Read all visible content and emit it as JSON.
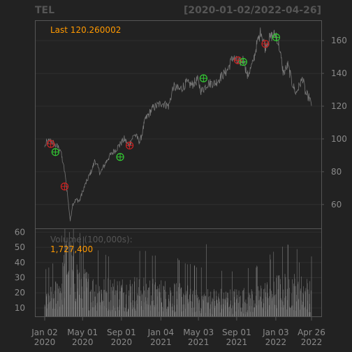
{
  "header": {
    "symbol": "TEL",
    "range": "[2020-01-02/2022-04-26]"
  },
  "colors": {
    "background": "#222222",
    "panel_border": "#555555",
    "grid": "#2f2f2f",
    "axis_text": "#8a8a8a",
    "price_line": "#777777",
    "volume_bar": "#7a7a7a",
    "annotation": "#ff9900",
    "buy_marker": "#33cc33",
    "sell_marker": "#cc2222"
  },
  "chart_data": [
    {
      "type": "line",
      "name": "price",
      "annotation": "Last 120.260002",
      "ylim": [
        45,
        172
      ],
      "yticks": [
        60,
        80,
        100,
        120,
        140,
        160
      ],
      "ytick_side": "right",
      "x_range": [
        "2020-01-02",
        "2022-04-26"
      ],
      "anchors": [
        [
          "2020-01-02",
          95
        ],
        [
          "2020-01-08",
          98
        ],
        [
          "2020-01-22",
          99
        ],
        [
          "2020-02-05",
          96
        ],
        [
          "2020-02-20",
          94
        ],
        [
          "2020-02-26",
          88
        ],
        [
          "2020-03-05",
          80
        ],
        [
          "2020-03-13",
          68
        ],
        [
          "2020-03-23",
          50
        ],
        [
          "2020-03-30",
          60
        ],
        [
          "2020-04-10",
          63
        ],
        [
          "2020-04-21",
          62
        ],
        [
          "2020-05-05",
          70
        ],
        [
          "2020-06-01",
          82
        ],
        [
          "2020-06-09",
          87
        ],
        [
          "2020-06-26",
          79
        ],
        [
          "2020-07-20",
          88
        ],
        [
          "2020-08-06",
          92
        ],
        [
          "2020-08-25",
          96
        ],
        [
          "2020-09-10",
          100
        ],
        [
          "2020-09-24",
          96
        ],
        [
          "2020-10-12",
          103
        ],
        [
          "2020-10-30",
          98
        ],
        [
          "2020-11-16",
          112
        ],
        [
          "2020-12-10",
          119
        ],
        [
          "2021-01-07",
          122
        ],
        [
          "2021-01-29",
          120
        ],
        [
          "2021-02-12",
          132
        ],
        [
          "2021-03-04",
          130
        ],
        [
          "2021-03-25",
          134
        ],
        [
          "2021-04-12",
          133
        ],
        [
          "2021-04-30",
          136
        ],
        [
          "2021-05-12",
          129
        ],
        [
          "2021-06-02",
          134
        ],
        [
          "2021-06-25",
          134
        ],
        [
          "2021-07-14",
          138
        ],
        [
          "2021-08-03",
          142
        ],
        [
          "2021-08-20",
          150
        ],
        [
          "2021-09-07",
          146
        ],
        [
          "2021-09-24",
          149
        ],
        [
          "2021-10-04",
          138
        ],
        [
          "2021-10-22",
          146
        ],
        [
          "2021-11-03",
          157
        ],
        [
          "2021-11-17",
          166
        ],
        [
          "2021-11-30",
          156
        ],
        [
          "2021-12-08",
          160
        ],
        [
          "2021-12-22",
          163
        ],
        [
          "2022-01-04",
          164
        ],
        [
          "2022-01-14",
          156
        ],
        [
          "2022-01-27",
          140
        ],
        [
          "2022-02-10",
          145
        ],
        [
          "2022-02-24",
          134
        ],
        [
          "2022-03-08",
          128
        ],
        [
          "2022-03-29",
          137
        ],
        [
          "2022-04-07",
          128
        ],
        [
          "2022-04-19",
          125
        ],
        [
          "2022-04-26",
          120.26
        ]
      ],
      "signals": [
        {
          "date": "2020-01-21",
          "value": 97,
          "kind": "sell"
        },
        {
          "date": "2020-02-05",
          "value": 92,
          "kind": "buy"
        },
        {
          "date": "2020-03-05",
          "value": 71,
          "kind": "sell"
        },
        {
          "date": "2020-08-28",
          "value": 89,
          "kind": "buy"
        },
        {
          "date": "2020-09-27",
          "value": 96,
          "kind": "sell"
        },
        {
          "date": "2021-05-19",
          "value": 137,
          "kind": "buy"
        },
        {
          "date": "2021-09-05",
          "value": 148,
          "kind": "sell"
        },
        {
          "date": "2021-09-22",
          "value": 147,
          "kind": "buy"
        },
        {
          "date": "2021-12-01",
          "value": 158,
          "kind": "sell"
        },
        {
          "date": "2022-01-04",
          "value": 162,
          "kind": "buy"
        }
      ]
    },
    {
      "type": "bar",
      "name": "volume",
      "title": "Volume (100,000s):",
      "last_value": "1,727,400",
      "ylim": [
        4,
        62
      ],
      "yticks": [
        10,
        20,
        30,
        40,
        50,
        60
      ],
      "ytick_side": "left",
      "levels": [
        [
          "2020-01-02",
          16
        ],
        [
          "2020-02-01",
          18
        ],
        [
          "2020-02-25",
          26
        ],
        [
          "2020-03-12",
          44
        ],
        [
          "2020-03-25",
          38
        ],
        [
          "2020-04-20",
          28
        ],
        [
          "2020-06-01",
          22
        ],
        [
          "2020-07-15",
          21
        ],
        [
          "2020-09-01",
          21
        ],
        [
          "2020-11-01",
          22
        ],
        [
          "2021-01-01",
          20
        ],
        [
          "2021-03-01",
          19
        ],
        [
          "2021-06-01",
          16
        ],
        [
          "2021-09-01",
          16
        ],
        [
          "2021-11-01",
          17
        ],
        [
          "2022-01-01",
          22
        ],
        [
          "2022-02-15",
          24
        ],
        [
          "2022-04-26",
          20
        ]
      ],
      "spikes": [
        [
          "2020-03-20",
          60
        ],
        [
          "2020-03-09",
          52
        ],
        [
          "2020-04-28",
          46
        ],
        [
          "2020-06-19",
          48
        ],
        [
          "2020-07-22",
          44
        ],
        [
          "2021-05-28",
          52
        ],
        [
          "2021-12-17",
          42
        ],
        [
          "2022-03-18",
          40
        ]
      ]
    }
  ],
  "x_axis": {
    "ticks": [
      {
        "date": "2020-01-02",
        "line1": "Jan 02",
        "line2": "2020"
      },
      {
        "date": "2020-05-01",
        "line1": "May 01",
        "line2": "2020"
      },
      {
        "date": "2020-09-01",
        "line1": "Sep 01",
        "line2": "2020"
      },
      {
        "date": "2021-01-04",
        "line1": "Jan 04",
        "line2": "2021"
      },
      {
        "date": "2021-05-03",
        "line1": "May 03",
        "line2": "2021"
      },
      {
        "date": "2021-09-01",
        "line1": "Sep 01",
        "line2": "2021"
      },
      {
        "date": "2022-01-03",
        "line1": "Jan 03",
        "line2": "2022"
      },
      {
        "date": "2022-04-26",
        "line1": "Apr 26",
        "line2": "2022"
      }
    ]
  }
}
